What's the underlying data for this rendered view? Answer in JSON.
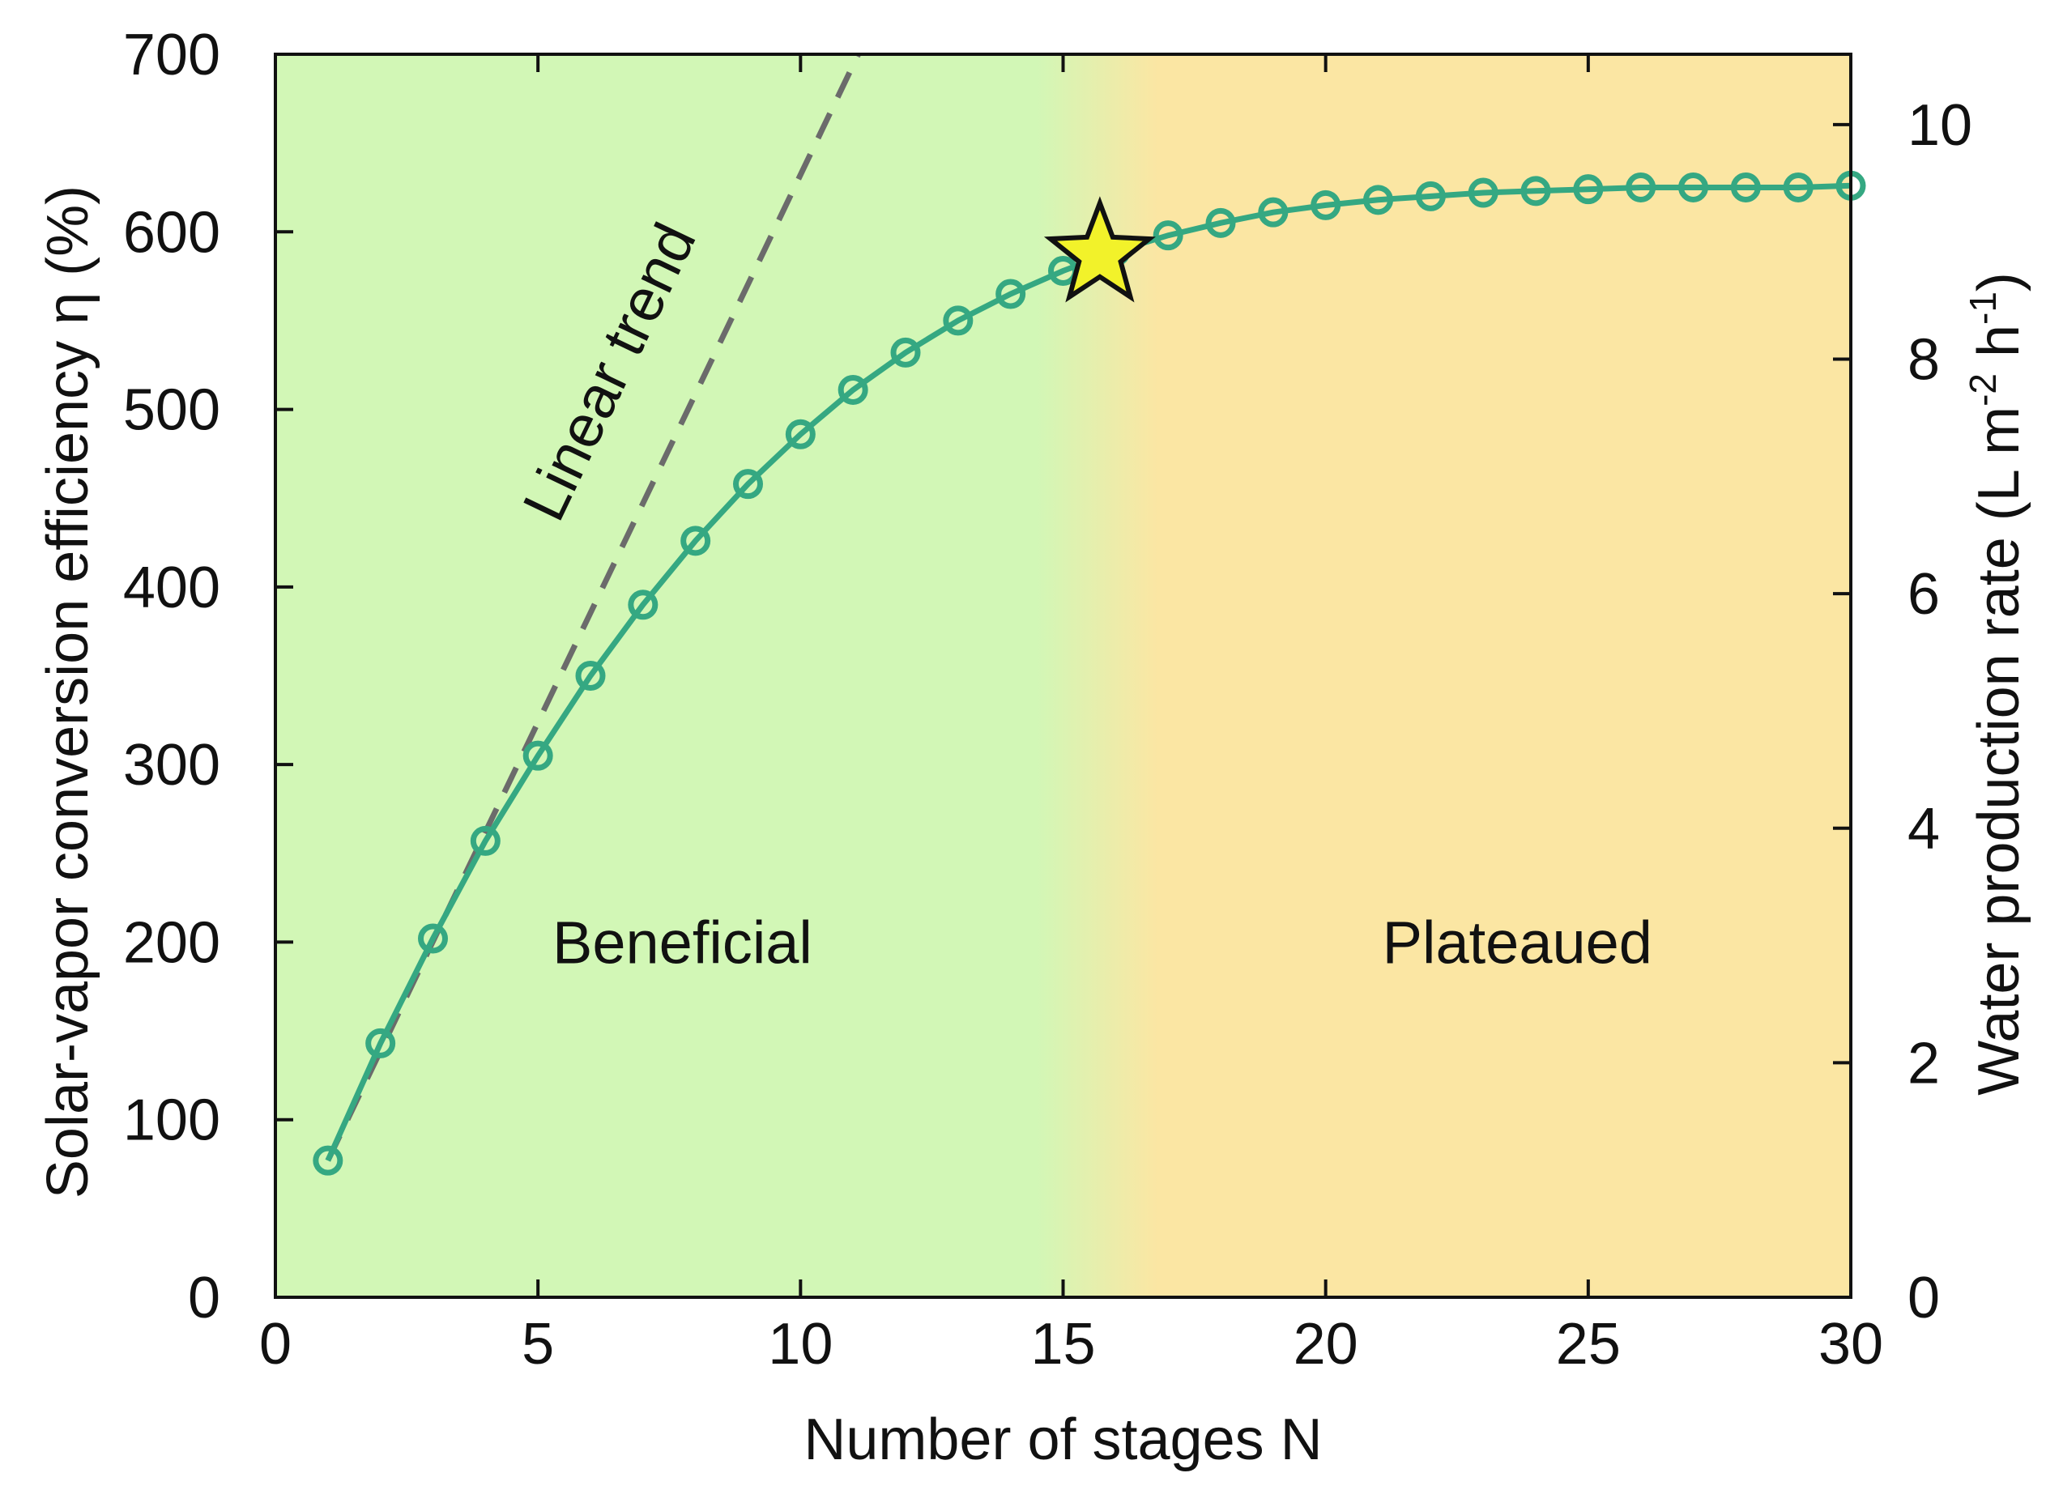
{
  "chart_data": {
    "type": "line",
    "xlabel": "Number of stages N",
    "ylabel": "Solar-vapor conversion efficiency η (%)",
    "y2label": {
      "base": "Water production rate (L m",
      "sup1": "-2",
      "mid": " h",
      "sup2": "-1",
      "end": ")"
    },
    "xlim": [
      0,
      30
    ],
    "ylim": [
      0,
      700
    ],
    "y2lim": [
      0,
      10.6
    ],
    "xticks": [
      "0",
      "5",
      "10",
      "15",
      "20",
      "25",
      "30"
    ],
    "yticks": [
      "0",
      "100",
      "200",
      "300",
      "400",
      "500",
      "600",
      "700"
    ],
    "y2ticks": [
      "0",
      "2",
      "4",
      "6",
      "8",
      "10"
    ],
    "series": [
      {
        "name": "Solar-vapor conversion efficiency",
        "color": "#35a882",
        "x": [
          1,
          2,
          3,
          4,
          5,
          6,
          7,
          8,
          9,
          10,
          11,
          12,
          13,
          14,
          15,
          16,
          17,
          18,
          19,
          20,
          21,
          22,
          23,
          24,
          25,
          26,
          27,
          28,
          29,
          30
        ],
        "values": [
          77,
          143,
          202,
          257,
          305,
          350,
          390,
          426,
          458,
          486,
          511,
          532,
          550,
          565,
          578,
          589,
          598,
          605,
          611,
          615,
          618,
          620,
          622,
          623,
          624,
          625,
          625,
          625,
          625,
          626
        ]
      }
    ],
    "linear_trend": {
      "label": "Linear trend",
      "color": "#6b6b6b",
      "x": [
        1,
        11.1
      ],
      "y": [
        77,
        700
      ]
    },
    "optimum_marker": {
      "x": 15.7,
      "y": 587,
      "color": "#f2f22a"
    },
    "regions": [
      {
        "label": "Beneficial",
        "color": "#d2f7b6"
      },
      {
        "label": "Plateaued",
        "color": "#fbe6a3"
      }
    ],
    "region_transition_x": [
      14.5,
      16.8
    ]
  }
}
